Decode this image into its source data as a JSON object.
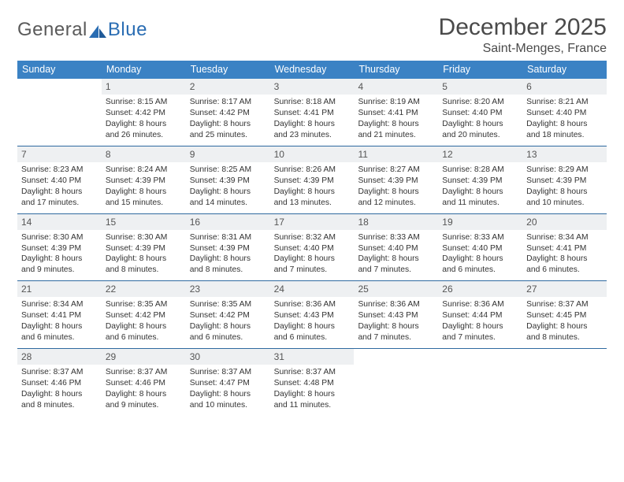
{
  "logo": {
    "text1": "General",
    "text2": "Blue"
  },
  "title": "December 2025",
  "location": "Saint-Menges, France",
  "colors": {
    "header_bg": "#3b82c4",
    "header_text": "#ffffff",
    "daynum_bg": "#eef0f2",
    "daynum_text": "#555555",
    "rule": "#2f6aa0",
    "body_text": "#333333",
    "title_text": "#4a4a4a",
    "logo_gray": "#6a6a6a",
    "logo_blue": "#2a6db3"
  },
  "weekdays": [
    "Sunday",
    "Monday",
    "Tuesday",
    "Wednesday",
    "Thursday",
    "Friday",
    "Saturday"
  ],
  "weeks": [
    [
      null,
      {
        "n": "1",
        "sr": "8:15 AM",
        "ss": "4:42 PM",
        "dl": "8 hours and 26 minutes."
      },
      {
        "n": "2",
        "sr": "8:17 AM",
        "ss": "4:42 PM",
        "dl": "8 hours and 25 minutes."
      },
      {
        "n": "3",
        "sr": "8:18 AM",
        "ss": "4:41 PM",
        "dl": "8 hours and 23 minutes."
      },
      {
        "n": "4",
        "sr": "8:19 AM",
        "ss": "4:41 PM",
        "dl": "8 hours and 21 minutes."
      },
      {
        "n": "5",
        "sr": "8:20 AM",
        "ss": "4:40 PM",
        "dl": "8 hours and 20 minutes."
      },
      {
        "n": "6",
        "sr": "8:21 AM",
        "ss": "4:40 PM",
        "dl": "8 hours and 18 minutes."
      }
    ],
    [
      {
        "n": "7",
        "sr": "8:23 AM",
        "ss": "4:40 PM",
        "dl": "8 hours and 17 minutes."
      },
      {
        "n": "8",
        "sr": "8:24 AM",
        "ss": "4:39 PM",
        "dl": "8 hours and 15 minutes."
      },
      {
        "n": "9",
        "sr": "8:25 AM",
        "ss": "4:39 PM",
        "dl": "8 hours and 14 minutes."
      },
      {
        "n": "10",
        "sr": "8:26 AM",
        "ss": "4:39 PM",
        "dl": "8 hours and 13 minutes."
      },
      {
        "n": "11",
        "sr": "8:27 AM",
        "ss": "4:39 PM",
        "dl": "8 hours and 12 minutes."
      },
      {
        "n": "12",
        "sr": "8:28 AM",
        "ss": "4:39 PM",
        "dl": "8 hours and 11 minutes."
      },
      {
        "n": "13",
        "sr": "8:29 AM",
        "ss": "4:39 PM",
        "dl": "8 hours and 10 minutes."
      }
    ],
    [
      {
        "n": "14",
        "sr": "8:30 AM",
        "ss": "4:39 PM",
        "dl": "8 hours and 9 minutes."
      },
      {
        "n": "15",
        "sr": "8:30 AM",
        "ss": "4:39 PM",
        "dl": "8 hours and 8 minutes."
      },
      {
        "n": "16",
        "sr": "8:31 AM",
        "ss": "4:39 PM",
        "dl": "8 hours and 8 minutes."
      },
      {
        "n": "17",
        "sr": "8:32 AM",
        "ss": "4:40 PM",
        "dl": "8 hours and 7 minutes."
      },
      {
        "n": "18",
        "sr": "8:33 AM",
        "ss": "4:40 PM",
        "dl": "8 hours and 7 minutes."
      },
      {
        "n": "19",
        "sr": "8:33 AM",
        "ss": "4:40 PM",
        "dl": "8 hours and 6 minutes."
      },
      {
        "n": "20",
        "sr": "8:34 AM",
        "ss": "4:41 PM",
        "dl": "8 hours and 6 minutes."
      }
    ],
    [
      {
        "n": "21",
        "sr": "8:34 AM",
        "ss": "4:41 PM",
        "dl": "8 hours and 6 minutes."
      },
      {
        "n": "22",
        "sr": "8:35 AM",
        "ss": "4:42 PM",
        "dl": "8 hours and 6 minutes."
      },
      {
        "n": "23",
        "sr": "8:35 AM",
        "ss": "4:42 PM",
        "dl": "8 hours and 6 minutes."
      },
      {
        "n": "24",
        "sr": "8:36 AM",
        "ss": "4:43 PM",
        "dl": "8 hours and 6 minutes."
      },
      {
        "n": "25",
        "sr": "8:36 AM",
        "ss": "4:43 PM",
        "dl": "8 hours and 7 minutes."
      },
      {
        "n": "26",
        "sr": "8:36 AM",
        "ss": "4:44 PM",
        "dl": "8 hours and 7 minutes."
      },
      {
        "n": "27",
        "sr": "8:37 AM",
        "ss": "4:45 PM",
        "dl": "8 hours and 8 minutes."
      }
    ],
    [
      {
        "n": "28",
        "sr": "8:37 AM",
        "ss": "4:46 PM",
        "dl": "8 hours and 8 minutes."
      },
      {
        "n": "29",
        "sr": "8:37 AM",
        "ss": "4:46 PM",
        "dl": "8 hours and 9 minutes."
      },
      {
        "n": "30",
        "sr": "8:37 AM",
        "ss": "4:47 PM",
        "dl": "8 hours and 10 minutes."
      },
      {
        "n": "31",
        "sr": "8:37 AM",
        "ss": "4:48 PM",
        "dl": "8 hours and 11 minutes."
      },
      null,
      null,
      null
    ]
  ],
  "labels": {
    "sunrise": "Sunrise:",
    "sunset": "Sunset:",
    "daylight": "Daylight:"
  }
}
